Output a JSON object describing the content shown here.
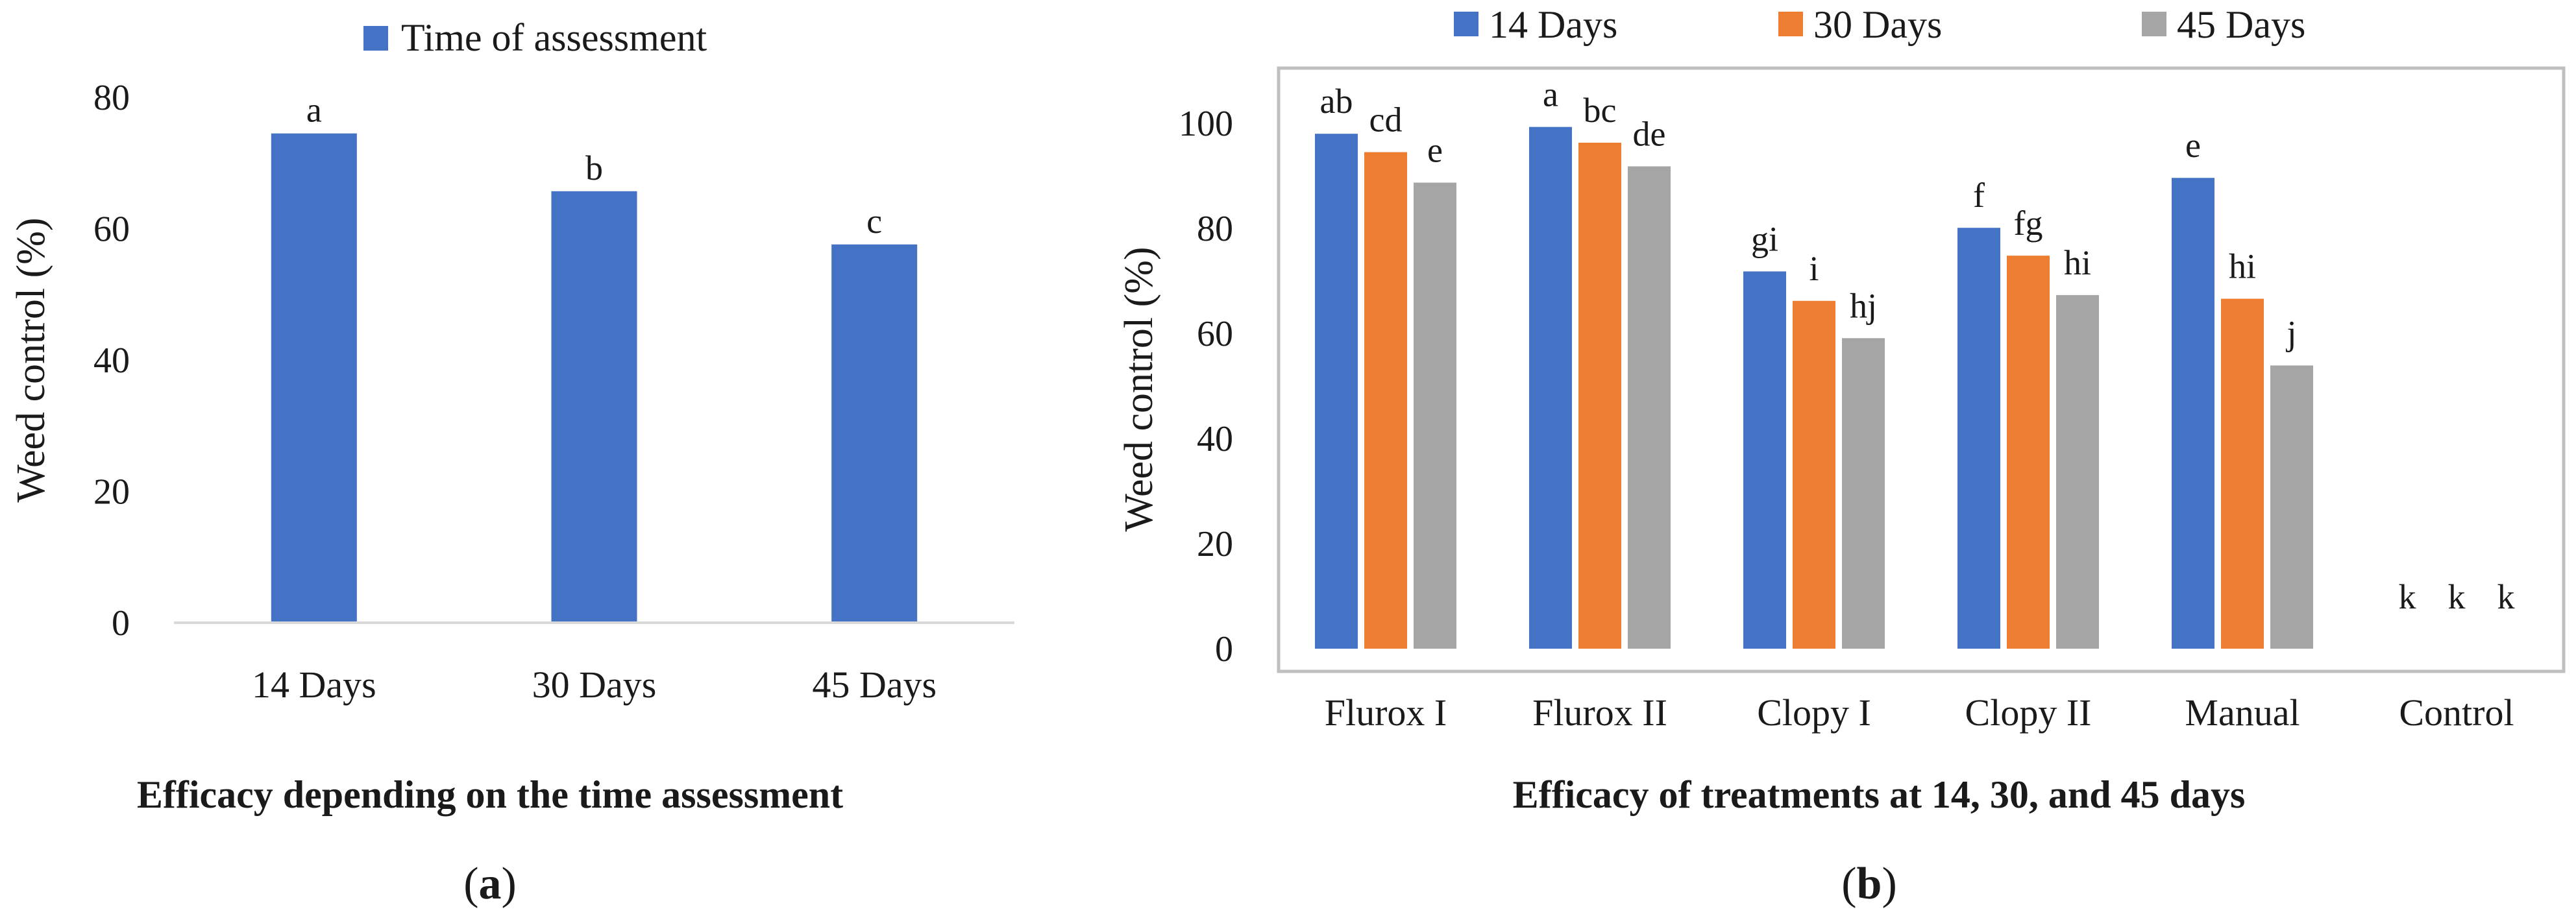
{
  "chart_data": [
    {
      "type": "bar",
      "panel_label": "a",
      "title": "Efficacy depending on the time assessment",
      "xlabel": "",
      "ylabel": "Weed control (%)",
      "ylim": [
        0,
        80
      ],
      "yticks": [
        "0",
        "20",
        "40",
        "60",
        "80"
      ],
      "grid": false,
      "legend_position": "top",
      "categories": [
        "14 Days",
        "30 Days",
        "45 Days"
      ],
      "series": [
        {
          "name": "Time of assessment",
          "color": "#4472C4",
          "values": [
            74.5,
            65.7,
            57.6
          ],
          "labels": [
            "a",
            "b",
            "c"
          ]
        }
      ]
    },
    {
      "type": "bar",
      "panel_label": "b",
      "title": "Efficacy of treatments at 14, 30, and 45 days",
      "xlabel": "",
      "ylabel": "Weed control (%)",
      "ylim": [
        0,
        110
      ],
      "yticks": [
        "0",
        "20",
        "40",
        "60",
        "80",
        "100"
      ],
      "grid": false,
      "legend_position": "top",
      "categories": [
        "Flurox I",
        "Flurox II",
        "Clopy I",
        "Clopy II",
        "Manual",
        "Control"
      ],
      "series": [
        {
          "name": "14 Days",
          "color": "#4472C4",
          "values": [
            98.0,
            99.3,
            71.8,
            80.1,
            89.6,
            0
          ],
          "labels": [
            "ab",
            "a",
            "gi",
            "f",
            "e",
            "k"
          ]
        },
        {
          "name": "30 Days",
          "color": "#ED7D31",
          "values": [
            94.5,
            96.3,
            66.2,
            74.8,
            66.6,
            0
          ],
          "labels": [
            "cd",
            "bc",
            "i",
            "fg",
            "hi",
            "k"
          ]
        },
        {
          "name": "45 Days",
          "color": "#A5A5A5",
          "values": [
            88.7,
            91.8,
            59.1,
            67.3,
            53.9,
            0
          ],
          "labels": [
            "e",
            "de",
            "hj",
            "hi",
            "j",
            "k"
          ]
        }
      ]
    }
  ]
}
